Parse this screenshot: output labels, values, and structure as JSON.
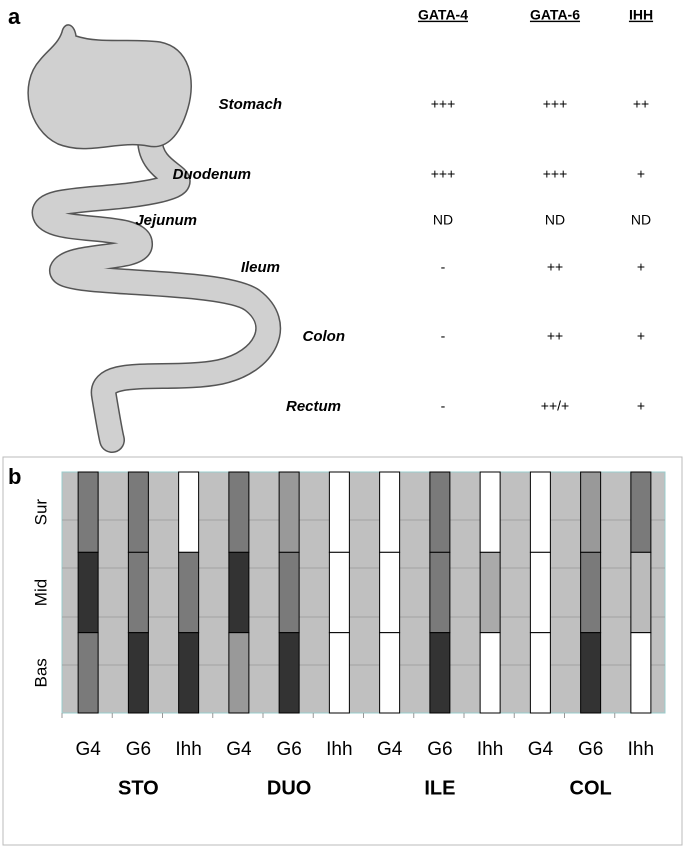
{
  "panel_a": {
    "label": "a",
    "columns": [
      "GATA-4",
      "GATA-6",
      "IHH"
    ],
    "rows": [
      {
        "region": "Stomach",
        "values": [
          "+++",
          "+++",
          "++"
        ]
      },
      {
        "region": "Duodenum",
        "values": [
          "+++",
          "+++",
          "+"
        ]
      },
      {
        "region": "Jejunum",
        "values": [
          "ND",
          "ND",
          "ND"
        ]
      },
      {
        "region": "Ileum",
        "values": [
          "-",
          "++",
          "+"
        ]
      },
      {
        "region": "Colon",
        "values": [
          "-",
          "++",
          "+"
        ]
      },
      {
        "region": "Rectum",
        "values": [
          "-",
          "++/+",
          "+"
        ]
      }
    ]
  },
  "panel_b": {
    "label": "b",
    "zones": [
      "Sur",
      "Mid",
      "Bas"
    ],
    "groups": [
      {
        "name": "STO",
        "bars": [
          {
            "label": "G4",
            "shades": [
              "#7a7a7a",
              "#333333",
              "#7a7a7a"
            ]
          },
          {
            "label": "G6",
            "shades": [
              "#7a7a7a",
              "#7a7a7a",
              "#333333"
            ]
          },
          {
            "label": "Ihh",
            "shades": [
              "#ffffff",
              "#7a7a7a",
              "#333333"
            ]
          }
        ]
      },
      {
        "name": "DUO",
        "bars": [
          {
            "label": "G4",
            "shades": [
              "#7a7a7a",
              "#333333",
              "#999999"
            ]
          },
          {
            "label": "G6",
            "shades": [
              "#999999",
              "#7a7a7a",
              "#333333"
            ]
          },
          {
            "label": "Ihh",
            "shades": [
              "#ffffff",
              "#ffffff",
              "#ffffff"
            ]
          }
        ]
      },
      {
        "name": "ILE",
        "bars": [
          {
            "label": "G4",
            "shades": [
              "#ffffff",
              "#ffffff",
              "#ffffff"
            ]
          },
          {
            "label": "G6",
            "shades": [
              "#7a7a7a",
              "#7a7a7a",
              "#333333"
            ]
          },
          {
            "label": "Ihh",
            "shades": [
              "#ffffff",
              "#aaaaaa",
              "#ffffff"
            ]
          }
        ]
      },
      {
        "name": "COL",
        "bars": [
          {
            "label": "G4",
            "shades": [
              "#ffffff",
              "#ffffff",
              "#ffffff"
            ]
          },
          {
            "label": "G6",
            "shades": [
              "#999999",
              "#7a7a7a",
              "#333333"
            ]
          },
          {
            "label": "Ihh",
            "shades": [
              "#7a7a7a",
              "#bbbbbb",
              "#ffffff"
            ]
          }
        ]
      }
    ]
  }
}
